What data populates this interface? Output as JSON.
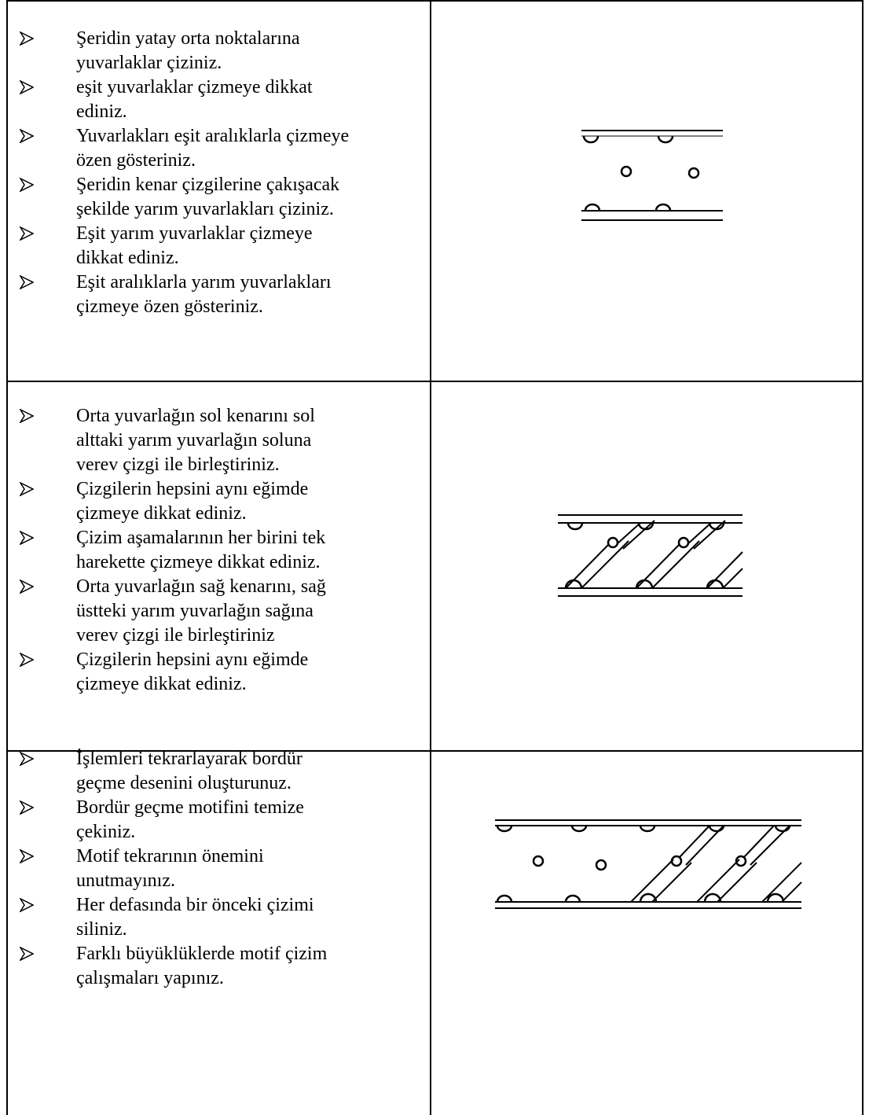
{
  "table": {
    "rows": [
      {
        "items": [
          [
            "Şeridin yatay orta noktalarına",
            "yuvarlaklar çiziniz."
          ],
          [
            "eşit yuvarlaklar çizmeye dikkat",
            "ediniz."
          ],
          [
            "Yuvarlakları eşit aralıklarla çizmeye",
            "özen gösteriniz."
          ],
          [
            "Şeridin kenar çizgilerine çakışacak",
            "şekilde yarım yuvarlakları çiziniz."
          ],
          [
            "Eşit yarım yuvarlaklar çizmeye",
            "dikkat ediniz."
          ],
          [
            "Eşit aralıklarla yarım yuvarlakları",
            "çizmeye özen gösteriniz."
          ]
        ]
      },
      {
        "items": [
          [
            "Orta yuvarlağın sol kenarını sol",
            "alttaki yarım yuvarlağın soluna",
            "verev çizgi ile birleştiriniz."
          ],
          [
            "Çizgilerin hepsini aynı eğimde",
            "çizmeye dikkat ediniz."
          ],
          [
            "Çizim aşamalarının her birini tek",
            "harekette çizmeye dikkat ediniz."
          ],
          [
            "Orta yuvarlağın sağ kenarını, sağ",
            "üstteki yarım yuvarlağın sağına",
            "verev çizgi ile birleştiriniz"
          ],
          [
            "Çizgilerin hepsini aynı eğimde",
            "çizmeye dikkat ediniz."
          ]
        ]
      },
      {
        "items": [
          [
            "İşlemleri tekrarlayarak bordür",
            "geçme desenini oluşturunuz."
          ],
          [
            "Bordür geçme motifini temize",
            "çekiniz."
          ],
          [
            "Motif tekrarının önemini",
            "unutmayınız."
          ],
          [
            "Her defasında bir önceki çizimi",
            "siliniz."
          ],
          [
            "Farklı büyüklüklerde motif çizim",
            "çalışmaları yapınız."
          ]
        ]
      }
    ]
  }
}
